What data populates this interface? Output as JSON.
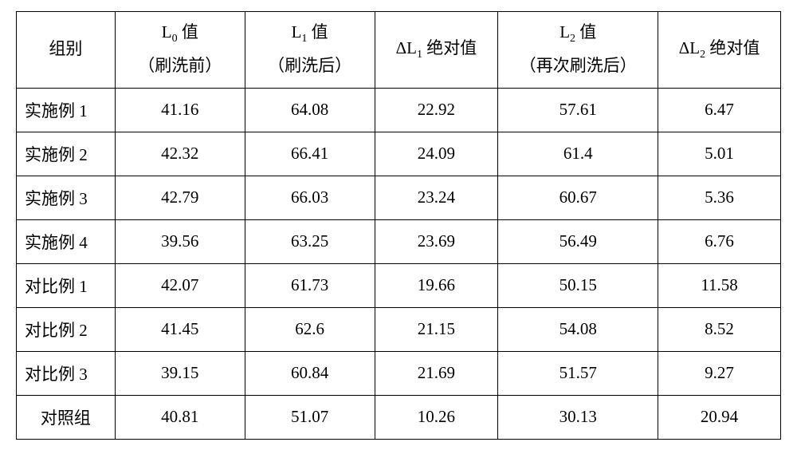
{
  "table": {
    "columns": [
      {
        "key": "group",
        "label": "组别",
        "sublabel": "",
        "cssClass": "col-group"
      },
      {
        "key": "l0",
        "label": "L",
        "subscript": "0",
        "suffix": " 值",
        "sublabel": "（刷洗前）",
        "cssClass": "col-l0"
      },
      {
        "key": "l1",
        "label": "L",
        "subscript": "1",
        "suffix": " 值",
        "sublabel": "（刷洗后）",
        "cssClass": "col-l1"
      },
      {
        "key": "dl1",
        "prefix": "Δ",
        "label": "L",
        "subscript": "1",
        "suffix": " 绝对值",
        "sublabel": "",
        "cssClass": "col-dl1"
      },
      {
        "key": "l2",
        "label": "L",
        "subscript": "2",
        "suffix": " 值",
        "sublabel": "（再次刷洗后）",
        "cssClass": "col-l2"
      },
      {
        "key": "dl2",
        "prefix": "Δ",
        "label": "L",
        "subscript": "2",
        "suffix": " 绝对值",
        "sublabel": "",
        "cssClass": "col-dl2"
      }
    ],
    "rows": [
      {
        "group": "实施例 1",
        "l0": "41.16",
        "l1": "64.08",
        "dl1": "22.92",
        "l2": "57.61",
        "dl2": "6.47",
        "center": false
      },
      {
        "group": "实施例 2",
        "l0": "42.32",
        "l1": "66.41",
        "dl1": "24.09",
        "l2": "61.4",
        "dl2": "5.01",
        "center": false
      },
      {
        "group": "实施例 3",
        "l0": "42.79",
        "l1": "66.03",
        "dl1": "23.24",
        "l2": "60.67",
        "dl2": "5.36",
        "center": false
      },
      {
        "group": "实施例 4",
        "l0": "39.56",
        "l1": "63.25",
        "dl1": "23.69",
        "l2": "56.49",
        "dl2": "6.76",
        "center": false
      },
      {
        "group": "对比例 1",
        "l0": "42.07",
        "l1": "61.73",
        "dl1": "19.66",
        "l2": "50.15",
        "dl2": "11.58",
        "center": false
      },
      {
        "group": "对比例 2",
        "l0": "41.45",
        "l1": "62.6",
        "dl1": "21.15",
        "l2": "54.08",
        "dl2": "8.52",
        "center": false
      },
      {
        "group": "对比例 3",
        "l0": "39.15",
        "l1": "60.84",
        "dl1": "21.69",
        "l2": "51.57",
        "dl2": "9.27",
        "center": false
      },
      {
        "group": "对照组",
        "l0": "40.81",
        "l1": "51.07",
        "dl1": "10.26",
        "l2": "30.13",
        "dl2": "20.94",
        "center": true
      }
    ],
    "border_color": "#000000",
    "background_color": "#ffffff",
    "text_color": "#000000",
    "font_size": 21,
    "header_row_height": 96,
    "data_row_height": 55
  }
}
